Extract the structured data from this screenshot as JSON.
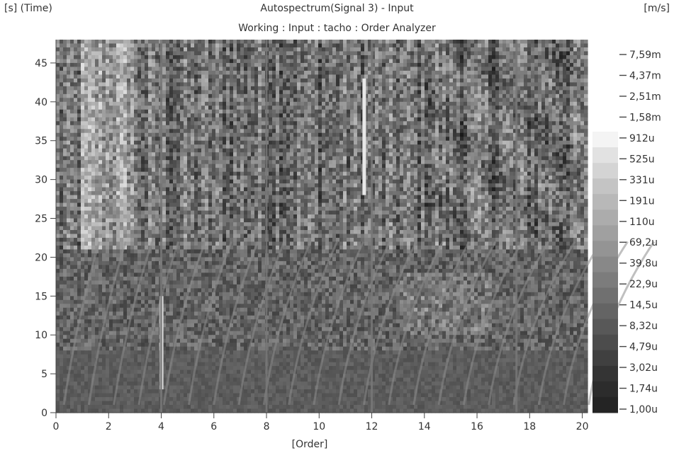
{
  "header": {
    "y_axis_label": "[s] (Time)",
    "unit": "[m/s]",
    "title": "Autospectrum(Signal 3) - Input",
    "subtitle": "Working : Input : tacho : Order Analyzer",
    "x_axis_label": "[Order]"
  },
  "chart_data": {
    "type": "heatmap",
    "title": "Autospectrum(Signal 3) - Input",
    "subtitle": "Working : Input : tacho : Order Analyzer",
    "xlabel": "[Order]",
    "ylabel": "[s] (Time)",
    "colorbar_unit": "[m/s]",
    "colormap": "grayscale",
    "xlim": [
      0,
      20.2
    ],
    "ylim": [
      0,
      48
    ],
    "x_ticks": [
      0,
      2,
      4,
      6,
      8,
      10,
      12,
      14,
      16,
      18,
      20
    ],
    "x_tick_labels": [
      "0",
      "2",
      "4",
      "6",
      "8",
      "10",
      "12",
      "14",
      "16",
      "18",
      "20"
    ],
    "y_ticks": [
      0,
      5,
      10,
      15,
      20,
      25,
      30,
      35,
      40,
      45
    ],
    "y_tick_labels": [
      "0",
      "5",
      "10",
      "15",
      "20",
      "25",
      "30",
      "35",
      "40",
      "45"
    ],
    "colorbar_ticks": [
      "7,59m",
      "4,37m",
      "2,51m",
      "1,58m",
      "912u",
      "525u",
      "331u",
      "191u",
      "110u",
      "69,2u",
      "39,8u",
      "22,9u",
      "14,5u",
      "8,32u",
      "4,79u",
      "3,02u",
      "1,74u",
      "1,00u"
    ],
    "colorbar_values": [
      0.00759,
      0.00437,
      0.00251,
      0.00158,
      0.000912,
      0.000525,
      0.000331,
      0.000191,
      0.00011,
      6.92e-05,
      3.98e-05,
      2.29e-05,
      1.45e-05,
      8.32e-06,
      4.79e-06,
      3.02e-06,
      1.74e-06,
      1e-06
    ],
    "constant_orders": [
      4,
      8,
      12,
      17.5
    ],
    "notable_features": [
      {
        "order": 4,
        "time_range": [
          3,
          15
        ],
        "level": "high"
      },
      {
        "order": 11.7,
        "time_range": [
          28,
          43
        ],
        "level": "high"
      }
    ]
  }
}
